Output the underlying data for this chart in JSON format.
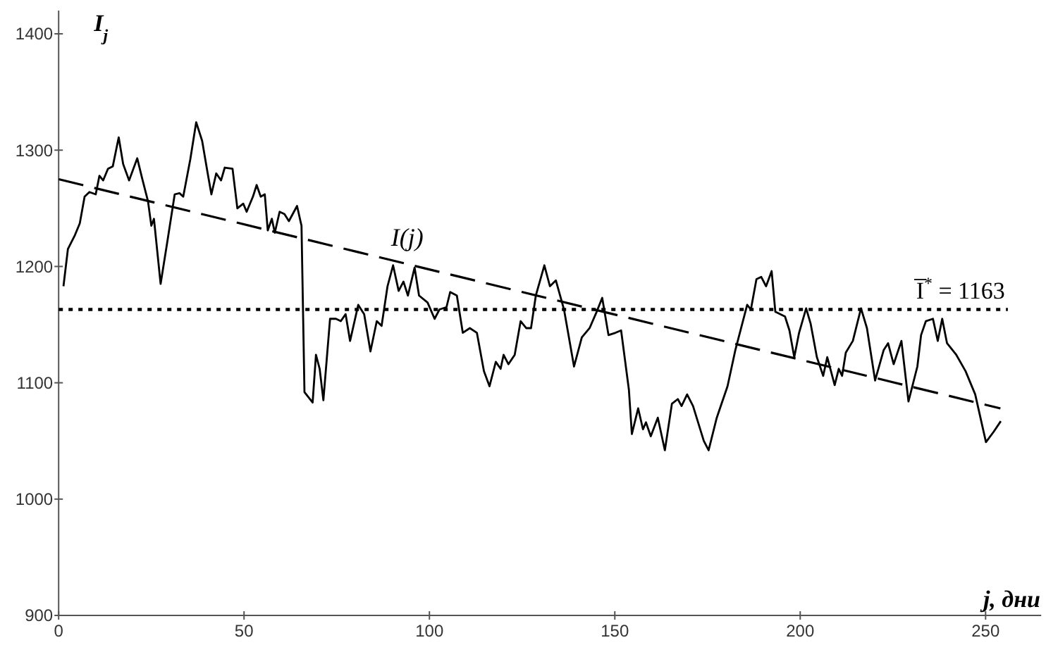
{
  "chart_data": {
    "type": "line",
    "xlabel": "j, дни",
    "ylabel": "I$_{j}$",
    "xlim": [
      0,
      265
    ],
    "ylim": [
      900,
      1420
    ],
    "xticks": [
      0,
      50,
      100,
      150,
      200,
      250
    ],
    "yticks": [
      900,
      1000,
      1100,
      1200,
      1300,
      1400
    ],
    "grid": false,
    "series": [
      {
        "name": "I(j)",
        "color": "#000000",
        "line_style": "solid",
        "x": [
          1.3,
          2.5,
          4.4,
          5.7,
          7,
          8.3,
          10,
          11,
          12,
          13.3,
          14.6,
          16.2,
          17.4,
          19,
          21.2,
          22.5,
          24.1,
          25,
          25.7,
          27.5,
          29.2,
          31.3,
          32.6,
          33.6,
          35.5,
          37.1,
          38.7,
          40.2,
          41.2,
          42.5,
          43.8,
          44.8,
          46.9,
          48.2,
          49.8,
          50.7,
          52.4,
          53.4,
          54.5,
          55.6,
          56.4,
          57.5,
          58.3,
          59.6,
          60.9,
          62.1,
          64.3,
          65.5,
          66.3,
          68.5,
          69.4,
          70.4,
          71.4,
          73.2,
          74.8,
          76.1,
          77.4,
          78.6,
          80.8,
          82.4,
          84.1,
          85.8,
          87.1,
          88.7,
          90.2,
          91.7,
          93,
          94.2,
          96,
          97.2,
          99.5,
          101.4,
          102.7,
          104.6,
          105.6,
          107.4,
          109,
          110.9,
          112.8,
          114.7,
          116.2,
          117.9,
          119.2,
          120,
          121.3,
          123,
          124.6,
          126.1,
          127.4,
          128.7,
          131,
          132.5,
          134.1,
          136.3,
          139,
          141.1,
          143.2,
          145.1,
          146.6,
          148.3,
          150.2,
          151.7,
          153.8,
          154.6,
          156.3,
          157.6,
          158.4,
          159.7,
          161.6,
          163.5,
          165.4,
          167,
          168,
          169.5,
          171.1,
          174,
          175.3,
          177.5,
          180.4,
          182.5,
          185.7,
          186.7,
          188.2,
          189.5,
          190.8,
          192.3,
          193.3,
          195.9,
          197.1,
          198.4,
          199.7,
          201.6,
          202.8,
          204.5,
          206.2,
          207.3,
          208.3,
          209.3,
          210.4,
          211.3,
          212.3,
          214.2,
          216.4,
          218,
          220.2,
          222.5,
          223.7,
          225.2,
          227.3,
          229.2,
          231.6,
          232.6,
          233.9,
          235.8,
          237.1,
          238.3,
          239.6,
          242.1,
          244.6,
          247.2,
          250.1,
          252.2,
          254.1
        ],
        "values": [
          1183,
          1215,
          1227,
          1237,
          1260,
          1264,
          1262,
          1278,
          1274,
          1284,
          1286,
          1311,
          1288,
          1274,
          1293,
          1276,
          1256,
          1235,
          1241,
          1185,
          1219,
          1262,
          1263,
          1260,
          1292,
          1324,
          1308,
          1280,
          1262,
          1280,
          1274,
          1285,
          1284,
          1250,
          1254,
          1247,
          1260,
          1270,
          1260,
          1262,
          1231,
          1241,
          1229,
          1247,
          1245,
          1239,
          1252,
          1235,
          1092,
          1083,
          1124,
          1112,
          1085,
          1155,
          1155,
          1153,
          1159,
          1136,
          1167,
          1159,
          1127,
          1153,
          1149,
          1183,
          1201,
          1179,
          1187,
          1175,
          1199,
          1175,
          1169,
          1155,
          1163,
          1165,
          1178,
          1175,
          1143,
          1147,
          1143,
          1110,
          1097,
          1118,
          1112,
          1124,
          1116,
          1124,
          1153,
          1147,
          1147,
          1175,
          1201,
          1183,
          1188,
          1163,
          1114,
          1139,
          1147,
          1161,
          1173,
          1141,
          1143,
          1145,
          1094,
          1056,
          1078,
          1060,
          1066,
          1054,
          1070,
          1042,
          1082,
          1086,
          1080,
          1090,
          1080,
          1050,
          1042,
          1070,
          1097,
          1128,
          1167,
          1163,
          1189,
          1191,
          1183,
          1196,
          1161,
          1157,
          1145,
          1122,
          1143,
          1164,
          1151,
          1122,
          1106,
          1122,
          1110,
          1098,
          1112,
          1106,
          1126,
          1136,
          1164,
          1147,
          1102,
          1128,
          1134,
          1116,
          1136,
          1084,
          1114,
          1141,
          1153,
          1155,
          1136,
          1155,
          1134,
          1124,
          1110,
          1090,
          1049,
          1058,
          1067
        ]
      },
      {
        "color": "#000000",
        "line_style": "dashed",
        "x": [
          0,
          254
        ],
        "values": [
          1275,
          1078
        ]
      }
    ],
    "ref_lines": [
      {
        "axis": "y",
        "value": 1163,
        "label": "I̅$^{*}$ = 1163",
        "color": "#000000",
        "line_style": "dotted"
      }
    ]
  }
}
